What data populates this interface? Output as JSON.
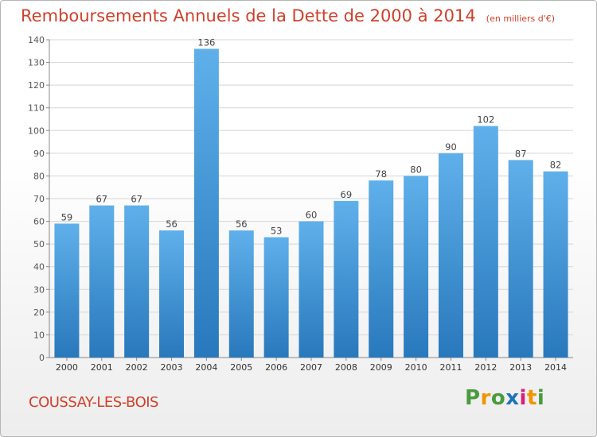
{
  "header": {
    "title": "Remboursements Annuels de la Dette de 2000 à 2014",
    "unit": "(en milliers d'€)"
  },
  "footer": {
    "commune": "COUSSAY-LES-BOIS",
    "logo_letters": [
      "P",
      "r",
      "o",
      "x",
      "i",
      "t",
      "i"
    ],
    "logo_colors": [
      "#4a9a3f",
      "#f29400",
      "#4a9a3f",
      "#1e73be",
      "#d81e7a",
      "#f29400",
      "#4a9a3f"
    ]
  },
  "colors": {
    "bar_light": "#5fb0ea",
    "bar_dark": "#2878bc",
    "grid": "#d6d6d6",
    "axis": "#888888",
    "title": "#d0402a"
  },
  "chart_data": {
    "type": "bar",
    "title": "Remboursements Annuels de la Dette de 2000 à 2014",
    "ylabel": "en milliers d'€",
    "xlabel": "",
    "categories": [
      "2000",
      "2001",
      "2002",
      "2003",
      "2004",
      "2005",
      "2006",
      "2007",
      "2008",
      "2009",
      "2010",
      "2011",
      "2012",
      "2013",
      "2014"
    ],
    "values": [
      59,
      67,
      67,
      56,
      136,
      56,
      53,
      60,
      69,
      78,
      80,
      90,
      102,
      87,
      82
    ],
    "ylim": [
      0,
      140
    ],
    "yticks": [
      0,
      10,
      20,
      30,
      40,
      50,
      60,
      70,
      80,
      90,
      100,
      110,
      120,
      130,
      140
    ],
    "grid": true,
    "data_labels": true
  }
}
